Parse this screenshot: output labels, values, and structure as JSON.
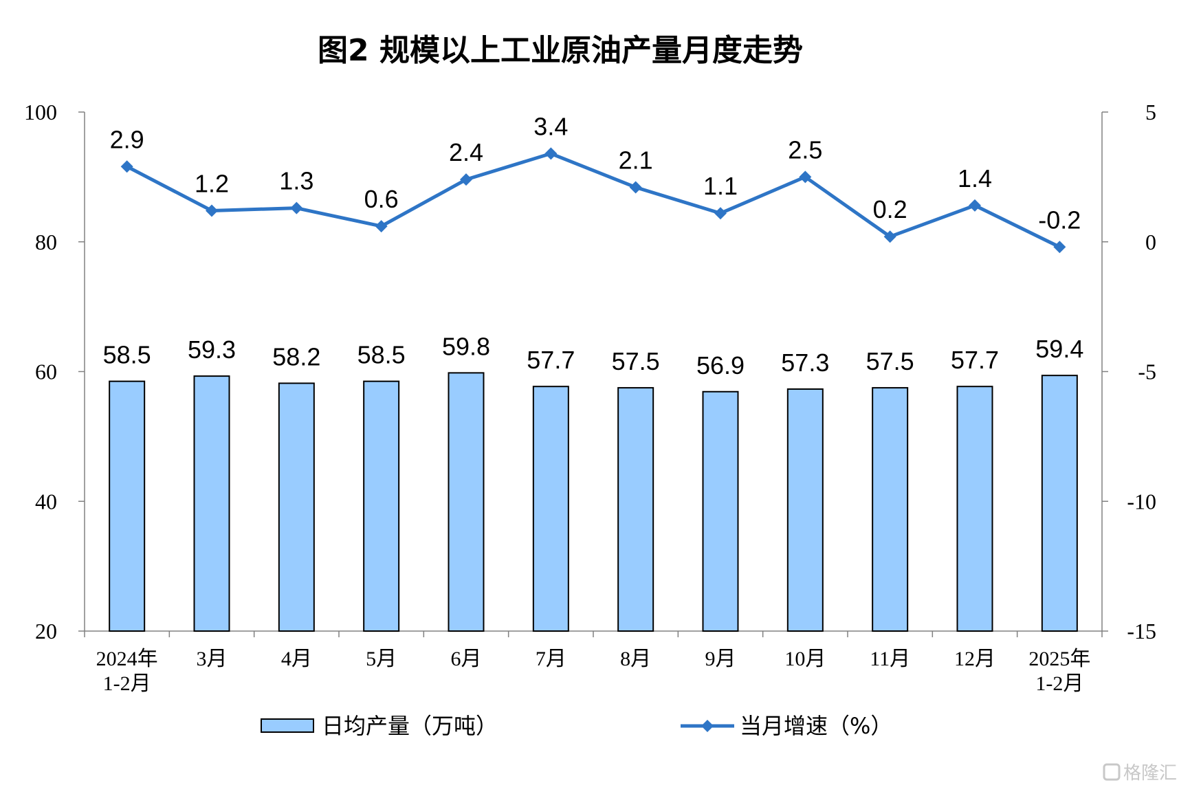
{
  "chart_data": {
    "type": "bar+line",
    "title": "图2 规模以上工业原油产量月度走势",
    "categories": [
      [
        "2024年",
        "1-2月"
      ],
      [
        "3月"
      ],
      [
        "4月"
      ],
      [
        "5月"
      ],
      [
        "6月"
      ],
      [
        "7月"
      ],
      [
        "8月"
      ],
      [
        "9月"
      ],
      [
        "10月"
      ],
      [
        "11月"
      ],
      [
        "12月"
      ],
      [
        "2025年",
        "1-2月"
      ]
    ],
    "series": [
      {
        "name": "日均产量（万吨）",
        "type": "bar",
        "axis": "left",
        "color": "#99ccff",
        "values": [
          58.5,
          59.3,
          58.2,
          58.5,
          59.8,
          57.7,
          57.5,
          56.9,
          57.3,
          57.5,
          57.7,
          59.4
        ],
        "labels": [
          "58.5",
          "59.3",
          "58.2",
          "58.5",
          "59.8",
          "57.7",
          "57.5",
          "56.9",
          "57.3",
          "57.5",
          "57.7",
          "59.4"
        ]
      },
      {
        "name": "当月增速（%）",
        "type": "line",
        "axis": "right",
        "color": "#2e75c6",
        "marker": "diamond",
        "values": [
          2.9,
          1.2,
          1.3,
          0.6,
          2.4,
          3.4,
          2.1,
          1.1,
          2.5,
          0.2,
          1.4,
          -0.2
        ],
        "labels": [
          "2.9",
          "1.2",
          "1.3",
          "0.6",
          "2.4",
          "3.4",
          "2.1",
          "1.1",
          "2.5",
          "0.2",
          "1.4",
          "-0.2"
        ]
      }
    ],
    "y_left": {
      "min": 20,
      "max": 100,
      "ticks": [
        "100",
        "80",
        "60",
        "40",
        "20"
      ],
      "tick_values": [
        100,
        80,
        60,
        40,
        20
      ]
    },
    "y_right": {
      "min": -15,
      "max": 5,
      "ticks": [
        "5",
        "0",
        "-5",
        "-10",
        "-15"
      ],
      "tick_values": [
        5,
        0,
        -5,
        -10,
        -15
      ]
    },
    "legend_position": "bottom",
    "grid": false
  },
  "watermark": "格隆汇"
}
